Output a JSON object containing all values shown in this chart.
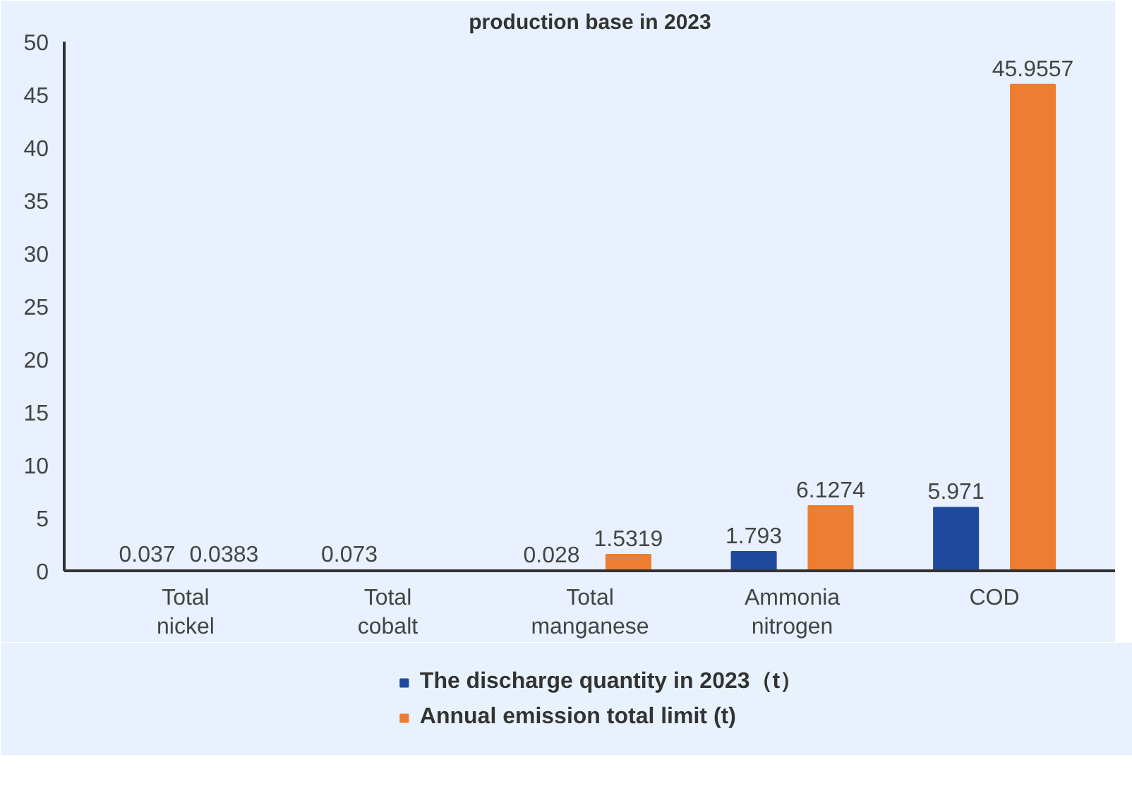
{
  "chart_data": {
    "type": "bar",
    "title": "production base in 2023",
    "categories": [
      "Total nickel",
      "Total cobalt",
      "Total manganese",
      "Ammonia nitrogen",
      "COD"
    ],
    "series": [
      {
        "name": "The discharge quantity in 2023（t）",
        "color": "#1f4a9c",
        "values": [
          0.037,
          0.073,
          0.028,
          1.793,
          5.971
        ]
      },
      {
        "name": "Annual emission total limit (t)",
        "color": "#ed7d31",
        "values": [
          0.0383,
          null,
          1.5319,
          6.1274,
          45.9557
        ]
      }
    ],
    "ylim": [
      0,
      50
    ],
    "yticks": [
      0,
      5,
      10,
      15,
      20,
      25,
      30,
      35,
      40,
      45,
      50
    ],
    "grid": false,
    "legend": "bottom",
    "data_labels": true
  }
}
